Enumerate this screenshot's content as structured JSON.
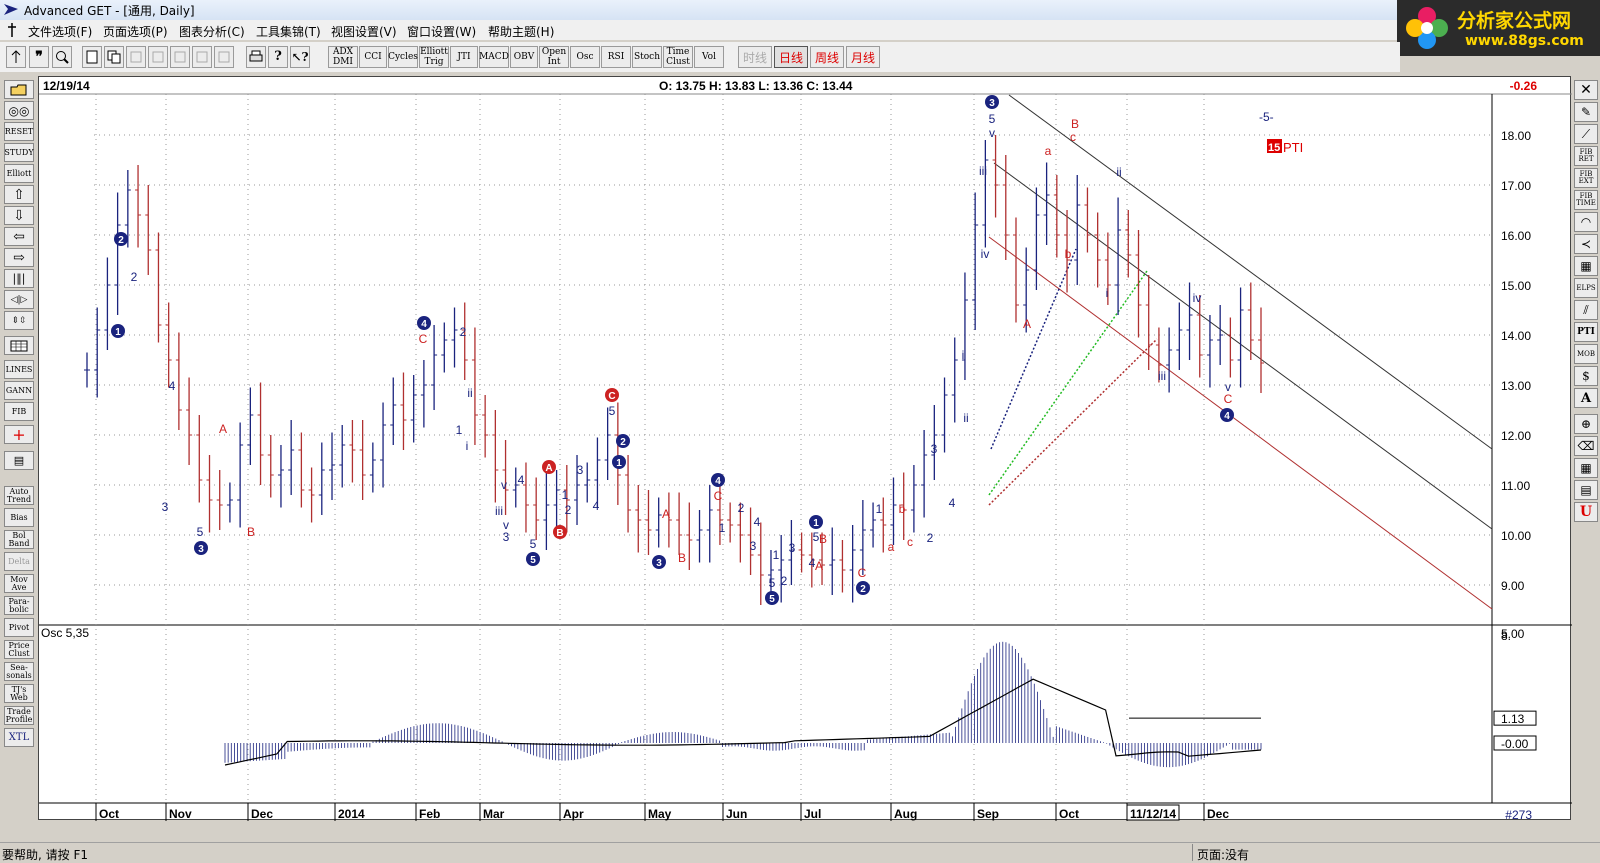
{
  "window": {
    "title": "Advanced GET - [通用, Daily]"
  },
  "menu": [
    "文件选项(F)",
    "页面选项(P)",
    "图表分析(C)",
    "工具集锦(T)",
    "视图设置(V)",
    "窗口设置(W)",
    "帮助主题(H)"
  ],
  "logo": {
    "text": "分析家公式网",
    "url": "www.88gs.com"
  },
  "toolbar": {
    "study_buttons": [
      "ADX DMI",
      "CCI",
      "Cycles",
      "Elliott Trig",
      "JTI",
      "MACD",
      "OBV",
      "Open Int",
      "Osc",
      "RSI",
      "Stoch",
      "Time Clust",
      "Vol"
    ],
    "periods": [
      {
        "label": "时线",
        "state": "disabled"
      },
      {
        "label": "日线",
        "state": "active"
      },
      {
        "label": "周线",
        "state": "normal"
      },
      {
        "label": "月线",
        "state": "normal"
      }
    ]
  },
  "left_tools": [
    "RESET",
    "STUDY",
    "Elliott",
    "LINES",
    "GANN",
    "FIB",
    "Auto Trend",
    "Bias",
    "Bol Band",
    "Delta",
    "Mov Ave",
    "Para-bolic",
    "Pivot",
    "Price Clust",
    "Sea-sonals",
    "TJ's Web",
    "Trade Profile",
    "XTL"
  ],
  "right_tools": [
    "FIB RET",
    "FIB EXT",
    "FIB TIME",
    "ELPS",
    "PTI",
    "MOB",
    "A"
  ],
  "chart": {
    "date_label": "12/19/14",
    "ohlc": {
      "O": "13.75",
      "H": "13.83",
      "L": "13.36",
      "C": "13.44"
    },
    "ohlc_text": "O: 13.75   H: 13.83   L: 13.36   C: 13.44",
    "change": "-0.26",
    "price_axis": [
      "18.00",
      "17.00",
      "16.00",
      "15.00",
      "14.00",
      "13.00",
      "12.00",
      "11.00",
      "10.00",
      "9.00",
      "8."
    ],
    "osc_label": "Osc 5,35",
    "osc_axis": [
      "5.00",
      "1.13",
      "-0.00"
    ],
    "time_axis": [
      "Oct",
      "Nov",
      "Dec",
      "2014",
      "Feb",
      "Mar",
      "Apr",
      "May",
      "Jun",
      "Jul",
      "Aug",
      "Sep",
      "Oct",
      "11/12/14",
      "Dec"
    ],
    "bar_count": "#273",
    "pti_value": "15",
    "pti_label": "PTI",
    "wave_tag": "-5-",
    "colors": {
      "up_bar": "#1a237e",
      "down_bar": "#b03030",
      "wave_blue": "#1a237e",
      "wave_red": "#cc2222",
      "green_channel": "#22bb22"
    }
  },
  "chart_data": {
    "type": "ohlc-bar",
    "title": "12/19/14",
    "xlabel": "",
    "ylabel": "",
    "ylim": [
      8.0,
      18.8
    ],
    "x": [
      "Oct",
      "Nov",
      "Dec",
      "2014",
      "Feb",
      "Mar",
      "Apr",
      "May",
      "Jun",
      "Jul",
      "Aug",
      "Sep",
      "Oct",
      "11/12/14",
      "Dec"
    ],
    "close_path": [
      13.3,
      14.1,
      15.0,
      16.2,
      16.9,
      16.4,
      15.7,
      14.2,
      13.5,
      12.5,
      12.0,
      11.1,
      10.7,
      10.6,
      10.7,
      11.8,
      12.4,
      11.6,
      11.2,
      11.3,
      11.7,
      10.9,
      10.8,
      11.3,
      11.4,
      11.8,
      11.7,
      11.2,
      11.5,
      12.2,
      12.6,
      12.3,
      12.8,
      13.0,
      13.6,
      13.9,
      14.1,
      13.5,
      12.4,
      12.0,
      11.3,
      10.9,
      11.0,
      10.6,
      10.3,
      10.6,
      10.9,
      10.7,
      11.0,
      11.1,
      11.5,
      12.0,
      11.2,
      10.5,
      10.3,
      10.1,
      10.4,
      10.3,
      10.0,
      9.9,
      10.1,
      10.5,
      10.3,
      10.2,
      10.0,
      9.6,
      9.2,
      9.3,
      9.5,
      9.7,
      9.6,
      9.5,
      9.4,
      9.5,
      9.3,
      9.7,
      10.1,
      10.3,
      10.2,
      10.6,
      10.5,
      11.0,
      11.6,
      12.0,
      12.8,
      13.5,
      14.7,
      16.2,
      17.5,
      17.0,
      16.0,
      14.6,
      15.3,
      16.4,
      16.8,
      16.0,
      15.5,
      16.6,
      16.0,
      15.5,
      15.0,
      16.1,
      15.6,
      14.6,
      13.8,
      13.4,
      13.7,
      14.1,
      14.4,
      13.6,
      13.9,
      14.0,
      13.5,
      14.5,
      13.9,
      13.44
    ],
    "oscillator": {
      "name": "Osc 5,35",
      "ylim": [
        -1.2,
        5.0
      ],
      "levels": [
        "5.00",
        "1.13",
        "-0.00"
      ]
    }
  },
  "status": {
    "help": "要帮助, 请按 F1",
    "page": "页面:没有"
  }
}
